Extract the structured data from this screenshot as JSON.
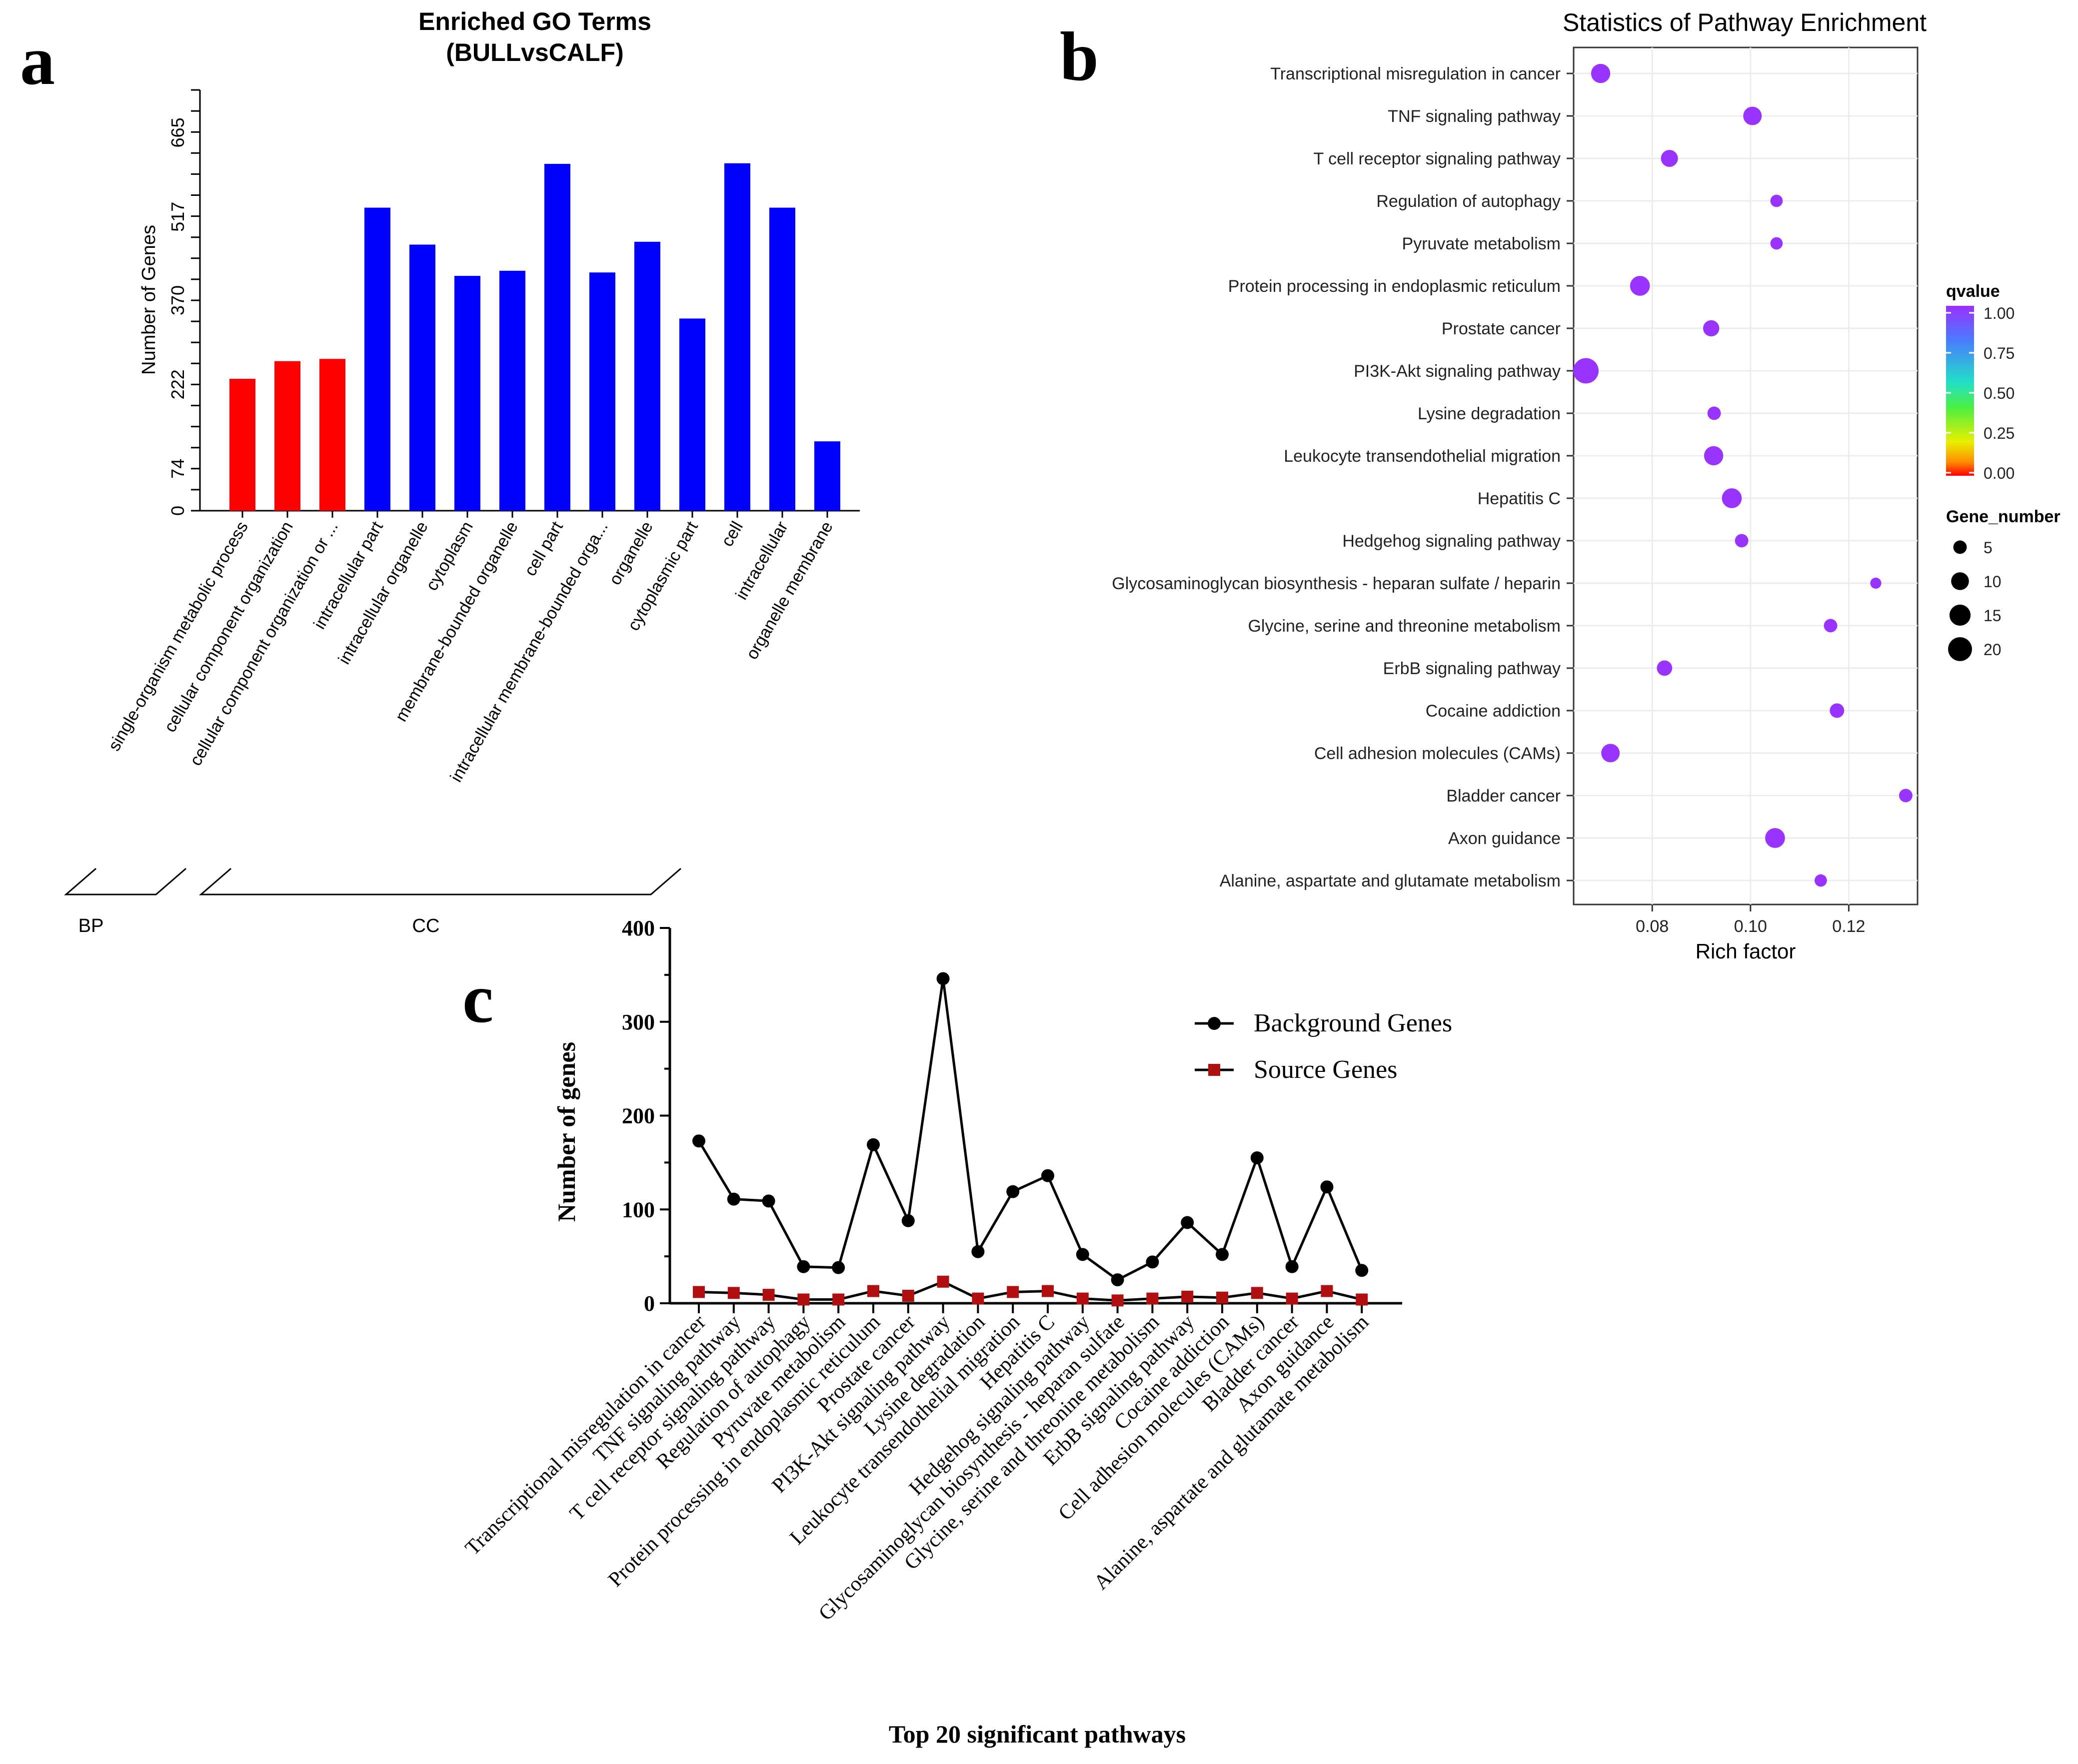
{
  "panel_letters": {
    "a": "a",
    "b": "b",
    "c": "c"
  },
  "chart_data": [
    {
      "id": "a",
      "type": "bar",
      "title": "Enriched GO Terms",
      "subtitle": "(BULLvsCALF)",
      "ylabel": "Number of Genes",
      "ylim": [
        0,
        740
      ],
      "yticks": [
        0,
        74,
        222,
        370,
        517,
        665
      ],
      "categories": [
        "single-organism metabolic process",
        "cellular component organization",
        "cellular component organization or ...",
        "intracellular part",
        "intracellular organelle",
        "cytoplasm",
        "membrane-bounded organelle",
        "cell part",
        "intracellular membrane-bounded orga...",
        "organelle",
        "cytoplasmic part",
        "cell",
        "intracellular",
        "organelle membrane"
      ],
      "values": [
        232,
        263,
        267,
        533,
        468,
        413,
        422,
        610,
        419,
        473,
        338,
        611,
        533,
        122
      ],
      "bar_groups": [
        "BP",
        "BP",
        "BP",
        "CC",
        "CC",
        "CC",
        "CC",
        "CC",
        "CC",
        "CC",
        "CC",
        "CC",
        "CC",
        "CC"
      ],
      "groups": [
        {
          "label": "BP",
          "start": 0,
          "end": 2,
          "color": "#ff0000"
        },
        {
          "label": "CC",
          "start": 3,
          "end": 13,
          "color": "#0000ff"
        }
      ]
    },
    {
      "id": "b",
      "type": "scatter",
      "title": "Statistics of Pathway Enrichment",
      "xlabel": "Rich factor",
      "xlim": [
        0.064,
        0.134
      ],
      "xticks": [
        0.08,
        0.1,
        0.12
      ],
      "xtick_labels": [
        "0.08",
        "0.10",
        "0.12"
      ],
      "point_color": "#9933ff",
      "categories": [
        "Transcriptional misregulation in cancer",
        "TNF signaling pathway",
        "T cell receptor signaling pathway",
        "Regulation of autophagy",
        "Pyruvate metabolism",
        "Protein processing in endoplasmic reticulum",
        "Prostate cancer",
        "PI3K-Akt signaling pathway",
        "Lysine degradation",
        "Leukocyte transendothelial migration",
        "Hepatitis C",
        "Hedgehog signaling pathway",
        "Glycosaminoglycan biosynthesis - heparan sulfate / heparin",
        "Glycine, serine and threonine metabolism",
        "ErbB signaling pathway",
        "Cocaine addiction",
        "Cell adhesion molecules (CAMs)",
        "Bladder cancer",
        "Axon guidance",
        "Alanine, aspartate and glutamate metabolism"
      ],
      "x": [
        0.0695,
        0.1004,
        0.0835,
        0.1053,
        0.1053,
        0.0775,
        0.092,
        0.0665,
        0.0926,
        0.0925,
        0.0962,
        0.0982,
        0.1255,
        0.1163,
        0.0825,
        0.1176,
        0.0715,
        0.1316,
        0.105,
        0.1143
      ],
      "gene_number": [
        12,
        11,
        9,
        4,
        4,
        13,
        8,
        23,
        5,
        12,
        13,
        5,
        3,
        5,
        7,
        6,
        11,
        5,
        13,
        4
      ],
      "legend_qvalue": {
        "title": "qvalue",
        "ticks": [
          "1.00",
          "0.75",
          "0.50",
          "0.25",
          "0.00"
        ]
      },
      "legend_size": {
        "title": "Gene_number",
        "entries": [
          {
            "label": "5",
            "value": 5
          },
          {
            "label": "10",
            "value": 10
          },
          {
            "label": "15",
            "value": 15
          },
          {
            "label": "20",
            "value": 20
          }
        ]
      }
    },
    {
      "id": "c",
      "type": "line",
      "xlabel": "Top 20 significant pathways",
      "ylabel": "Number of genes",
      "ylim": [
        0,
        400
      ],
      "yticks": [
        0,
        100,
        200,
        300,
        400
      ],
      "categories": [
        "Transcriptional misregulation in cancer",
        "TNF signaling pathway",
        "T cell receptor signaling pathway",
        "Regulation of autophagy",
        "Pyruvate metabolism",
        "Protein processing in endoplasmic reticulum",
        "Prostate cancer",
        "PI3K-Akt signaling pathway",
        "Lysine degradation",
        "Leukocyte transendothelial migration",
        "Hepatitis C",
        "Hedgehog signaling pathway",
        "Glycosaminoglycan biosynthesis - heparan sulfate",
        "Glycine, serine and threonine metabolism",
        "ErbB signaling pathway",
        "Cocaine addiction",
        "Cell adhesion molecules (CAMs)",
        "Bladder cancer",
        "Axon guidance",
        "Alanine, aspartate and glutamate metabolism"
      ],
      "series": [
        {
          "name": "Background Genes",
          "color": "#000000",
          "marker": "circle",
          "values": [
            173,
            111,
            109,
            39,
            38,
            169,
            88,
            346,
            55,
            119,
            136,
            52,
            25,
            44,
            86,
            52,
            155,
            39,
            124,
            35
          ]
        },
        {
          "name": "Source Genes",
          "color": "#b01010",
          "marker": "square",
          "values": [
            12,
            11,
            9,
            4,
            4,
            13,
            8,
            23,
            5,
            12,
            13,
            5,
            3,
            5,
            7,
            6,
            11,
            5,
            13,
            4
          ]
        }
      ]
    }
  ]
}
